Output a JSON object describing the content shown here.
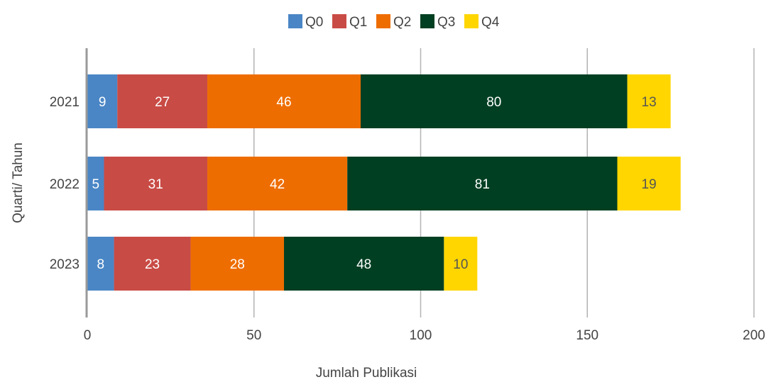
{
  "chart_data": {
    "type": "bar",
    "orientation": "horizontal",
    "stacked": true,
    "categories": [
      "2021",
      "2022",
      "2023"
    ],
    "series": [
      {
        "name": "Q0",
        "values": [
          9,
          5,
          8
        ],
        "color": "#4A86C5",
        "label_color": "#ffffff"
      },
      {
        "name": "Q1",
        "values": [
          27,
          31,
          23
        ],
        "color": "#C94B45",
        "label_color": "#ffffff"
      },
      {
        "name": "Q2",
        "values": [
          46,
          42,
          28
        ],
        "color": "#EE6D00",
        "label_color": "#ffffff"
      },
      {
        "name": "Q3",
        "values": [
          80,
          81,
          48
        ],
        "color": "#003F22",
        "label_color": "#ffffff"
      },
      {
        "name": "Q4",
        "values": [
          13,
          19,
          10
        ],
        "color": "#FFD600",
        "label_color": "#555555"
      }
    ],
    "xlabel": "Jumlah Publikasi",
    "ylabel": "Quarti/ Tahun",
    "xlim": [
      0,
      200
    ],
    "xticks": [
      0,
      50,
      100,
      150,
      200
    ],
    "grid": true,
    "legend_position": "top"
  }
}
